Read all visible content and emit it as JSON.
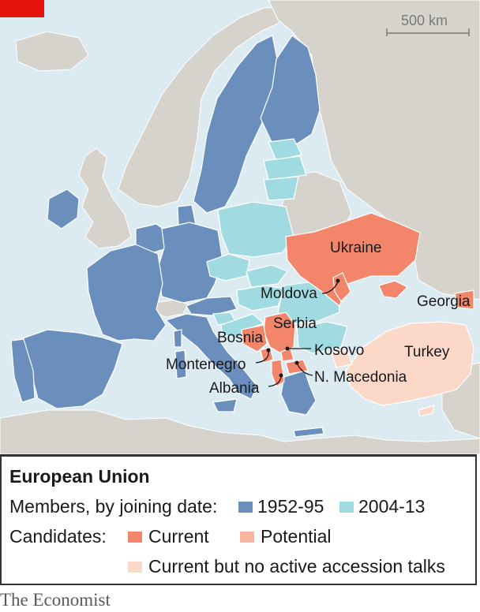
{
  "colors": {
    "sea": "#dcebf2",
    "land": "#d6d3cc",
    "member_1952_95": "#6a8fbd",
    "member_2004_13": "#9fdbe1",
    "candidate_current": "#f2856a",
    "candidate_potential": "#f9b7a0",
    "candidate_no_talks": "#fbd8c8",
    "brand_red": "#e3120b"
  },
  "scale_bar": {
    "label": "500 km"
  },
  "map_labels": {
    "ukraine": "Ukraine",
    "moldova": "Moldova",
    "georgia": "Georgia",
    "serbia": "Serbia",
    "bosnia": "Bosnia",
    "kosovo": "Kosovo",
    "turkey": "Turkey",
    "montenegro": "Montenegro",
    "n_macedonia": "N. Macedonia",
    "albania": "Albania"
  },
  "legend": {
    "title": "European Union",
    "members_label": "Members, by joining date:",
    "members_1952_95": "1952-95",
    "members_2004_13": "2004-13",
    "candidates_label": "Candidates:",
    "current": "Current",
    "potential": "Potential",
    "no_talks": "Current but no active accession talks"
  },
  "source": "The Economist"
}
